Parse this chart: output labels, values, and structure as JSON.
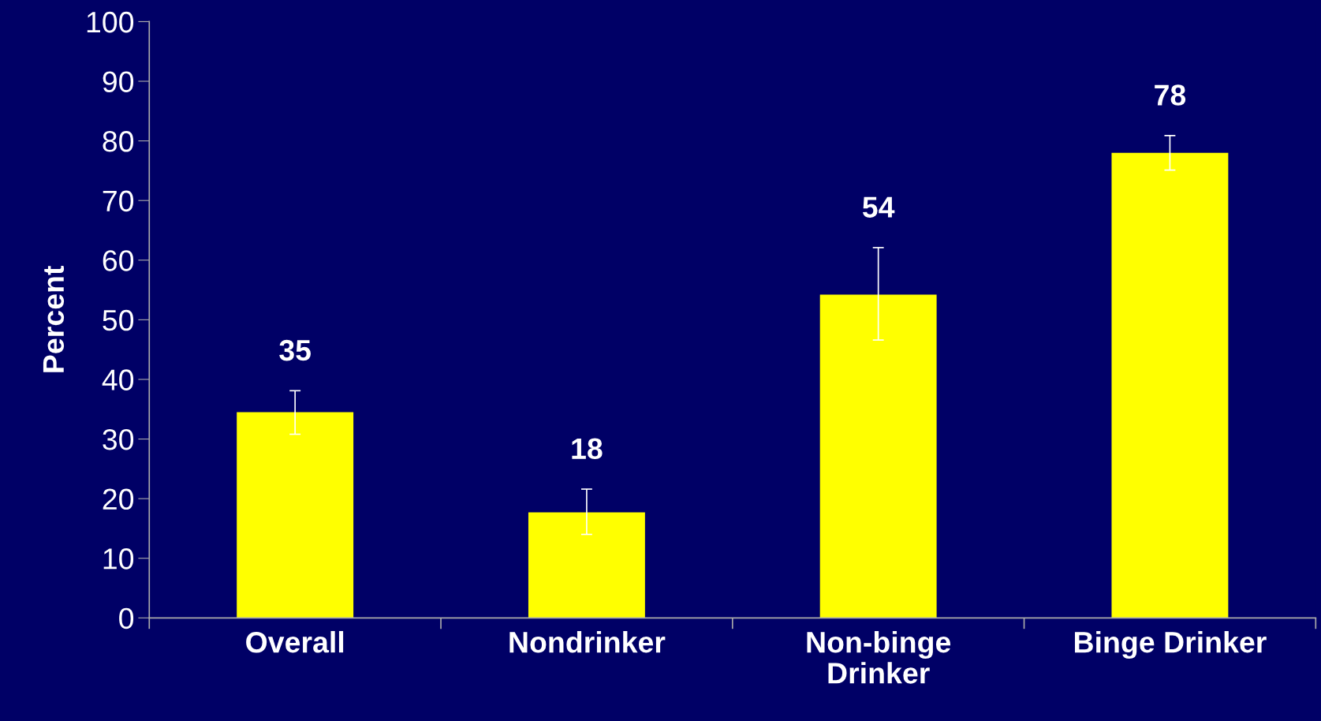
{
  "chart_data": {
    "type": "bar",
    "ylabel": "Percent",
    "categories": [
      "Overall",
      "Nondrinker",
      "Non-binge\nDrinker",
      "Binge Drinker"
    ],
    "values": [
      34.5,
      17.7,
      54.2,
      78.0
    ],
    "value_labels": [
      "35",
      "18",
      "54",
      "78"
    ],
    "errors": [
      [
        30.8,
        38.1
      ],
      [
        14.0,
        21.6
      ],
      [
        46.6,
        62.1
      ],
      [
        75.1,
        80.9
      ]
    ],
    "color": "#ffff00",
    "ylim": [
      0,
      100
    ],
    "yticks": [
      0,
      10,
      20,
      30,
      40,
      50,
      60,
      70,
      80,
      90,
      100
    ],
    "grid": false
  }
}
